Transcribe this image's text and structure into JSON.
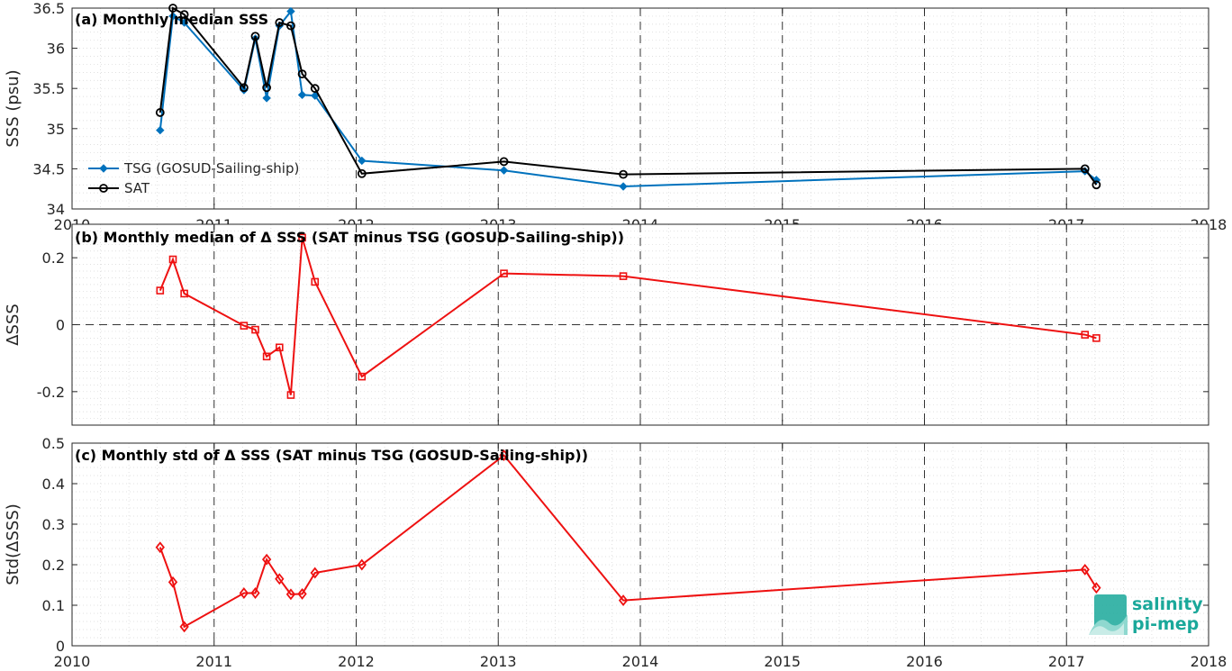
{
  "chart_data": [
    {
      "type": "line",
      "title": "(a) Monthly median SSS",
      "xlabel": "",
      "ylabel": "SSS (psu)",
      "xlim": [
        2010,
        2018
      ],
      "ylim": [
        34,
        36.5
      ],
      "xticks": [
        "2010",
        "2011",
        "2012",
        "2013",
        "2014",
        "2015",
        "2016",
        "2017",
        "2018"
      ],
      "yticks": [
        "34",
        "34.5",
        "35",
        "35.5",
        "36",
        "36.5"
      ],
      "grid": true,
      "legend": "left",
      "series": [
        {
          "name": "TSG (GOSUD-Sailing-ship)",
          "color": "#0072bd",
          "marker": "diamond-filled",
          "x": [
            2010.62,
            2010.71,
            2010.79,
            2011.21,
            2011.29,
            2011.37,
            2011.46,
            2011.54,
            2011.62,
            2011.71,
            2012.04,
            2013.04,
            2013.88,
            2017.13,
            2017.21
          ],
          "y": [
            34.98,
            36.4,
            36.32,
            35.48,
            36.12,
            35.38,
            36.28,
            36.46,
            35.42,
            35.41,
            34.6,
            34.48,
            34.28,
            34.47,
            34.36
          ]
        },
        {
          "name": "SAT",
          "color": "#000000",
          "marker": "circle-open",
          "x": [
            2010.62,
            2010.71,
            2010.79,
            2011.21,
            2011.29,
            2011.37,
            2011.46,
            2011.54,
            2011.62,
            2011.71,
            2012.04,
            2013.04,
            2013.88,
            2017.13,
            2017.21
          ],
          "y": [
            35.2,
            36.5,
            36.42,
            35.51,
            36.15,
            35.51,
            36.32,
            36.28,
            35.68,
            35.5,
            34.44,
            34.59,
            34.43,
            34.5,
            34.3
          ]
        }
      ]
    },
    {
      "type": "line",
      "title": "(b) Monthly median of Δ SSS (SAT minus TSG (GOSUD-Sailing-ship))",
      "xlabel": "",
      "ylabel": "ΔSSS",
      "xlim": [
        2010,
        2018
      ],
      "ylim": [
        -0.3,
        0.3
      ],
      "yticks": [
        "-0.2",
        "0",
        "0.2"
      ],
      "grid": true,
      "zero_line": true,
      "series": [
        {
          "color": "#ee1111",
          "marker": "square-open",
          "x": [
            2010.62,
            2010.71,
            2010.79,
            2011.21,
            2011.29,
            2011.37,
            2011.46,
            2011.54,
            2011.62,
            2011.71,
            2012.04,
            2013.04,
            2013.88,
            2017.13,
            2017.21
          ],
          "y": [
            0.102,
            0.195,
            0.093,
            -0.003,
            -0.015,
            -0.095,
            -0.068,
            -0.21,
            0.26,
            0.128,
            -0.155,
            0.153,
            0.145,
            -0.03,
            -0.04
          ]
        }
      ]
    },
    {
      "type": "line",
      "title": "(c) Monthly std of Δ SSS (SAT minus TSG (GOSUD-Sailing-ship))",
      "xlabel": "",
      "ylabel": "Std(ΔSSS)",
      "xlim": [
        2010,
        2018
      ],
      "ylim": [
        0,
        0.5
      ],
      "xticks": [
        "2010",
        "2011",
        "2012",
        "2013",
        "2014",
        "2015",
        "2016",
        "2017",
        "2018"
      ],
      "yticks": [
        "0",
        "0.1",
        "0.2",
        "0.3",
        "0.4",
        "0.5"
      ],
      "grid": true,
      "series": [
        {
          "color": "#ee1111",
          "marker": "diamond-open",
          "x": [
            2010.62,
            2010.71,
            2010.79,
            2011.21,
            2011.29,
            2011.37,
            2011.46,
            2011.54,
            2011.62,
            2011.71,
            2012.04,
            2013.04,
            2013.88,
            2017.13,
            2017.21
          ],
          "y": [
            0.243,
            0.157,
            0.047,
            0.13,
            0.13,
            0.213,
            0.165,
            0.127,
            0.128,
            0.18,
            0.2,
            0.47,
            0.112,
            0.188,
            0.143
          ]
        }
      ]
    }
  ],
  "logo": {
    "line1": "salinity",
    "line2": "pi-mep",
    "color": "#1aa89a"
  }
}
